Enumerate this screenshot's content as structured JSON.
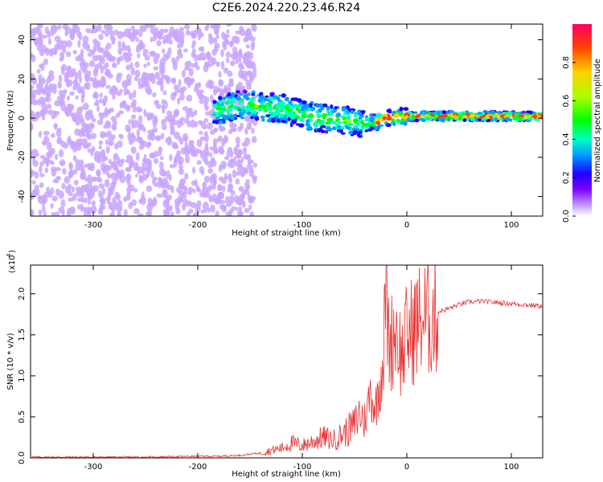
{
  "title": "C2E6.2024.220.23.46.R24",
  "chart_data": [
    {
      "type": "heatmap",
      "xlabel": "Height of straight line (km)",
      "ylabel": "Frequency (Hz)",
      "xlim": [
        -360,
        130
      ],
      "ylim": [
        -50,
        48
      ],
      "x_ticks": [
        -300,
        -200,
        -100,
        0,
        100
      ],
      "y_ticks": [
        -40,
        -20,
        0,
        20,
        40
      ],
      "colorbar": {
        "label": "Normalized spectral amplitude",
        "range": [
          0.0,
          1.0
        ],
        "ticks": [
          "0.0",
          "0.2",
          "0.4",
          "0.6",
          "0.8"
        ],
        "colormap": [
          "#ffffff",
          "#c9a6ff",
          "#7b00ff",
          "#1f00ff",
          "#00a0ff",
          "#00ffc0",
          "#00ff00",
          "#aaff00",
          "#ffd000",
          "#ff4000",
          "#ff0060"
        ]
      },
      "description_values": {
        "noise_region_x": [
          -360,
          -170
        ],
        "signal_band_center_hz": [
          [
            -180,
            4
          ],
          [
            -160,
            7
          ],
          [
            -140,
            6
          ],
          [
            -120,
            5
          ],
          [
            -100,
            2
          ],
          [
            -80,
            0
          ],
          [
            -60,
            -1
          ],
          [
            -40,
            -3
          ],
          [
            -30,
            -2
          ],
          [
            -20,
            0
          ],
          [
            0,
            1
          ],
          [
            50,
            1
          ],
          [
            130,
            1
          ]
        ]
      }
    },
    {
      "type": "line",
      "xlabel": "Height of straight line (km)",
      "ylabel": "SNR (10 * v/v)",
      "ylabel_exponent": "(x10",
      "ylabel_exponent_power": "4",
      "ylabel_exponent_close": ")",
      "xlim": [
        -360,
        130
      ],
      "ylim": [
        0.0,
        2.35
      ],
      "x_ticks": [
        -300,
        -200,
        -100,
        0,
        100
      ],
      "y_ticks": [
        "0.0",
        "0.5",
        "1.0",
        "1.5",
        "2.0"
      ],
      "series": [
        {
          "color": "#e83030",
          "x": [
            -360,
            -300,
            -250,
            -200,
            -180,
            -160,
            -140,
            -120,
            -110,
            -100,
            -90,
            -80,
            -70,
            -60,
            -55,
            -50,
            -45,
            -40,
            -35,
            -30,
            -25,
            -22,
            -20,
            -18,
            -15,
            -12,
            -10,
            -5,
            0,
            5,
            10,
            15,
            20,
            25,
            30,
            40,
            50,
            60,
            70,
            80,
            90,
            100,
            110,
            120,
            130
          ],
          "values": [
            0.01,
            0.01,
            0.01,
            0.02,
            0.02,
            0.03,
            0.06,
            0.12,
            0.18,
            0.15,
            0.2,
            0.25,
            0.22,
            0.3,
            0.35,
            0.4,
            0.55,
            0.45,
            0.8,
            0.6,
            1.0,
            1.3,
            2.3,
            1.5,
            1.4,
            1.55,
            1.6,
            1.2,
            1.5,
            1.55,
            1.65,
            1.7,
            1.7,
            1.72,
            1.78,
            1.82,
            1.87,
            1.9,
            1.91,
            1.9,
            1.89,
            1.88,
            1.87,
            1.86,
            1.85
          ]
        }
      ]
    }
  ]
}
